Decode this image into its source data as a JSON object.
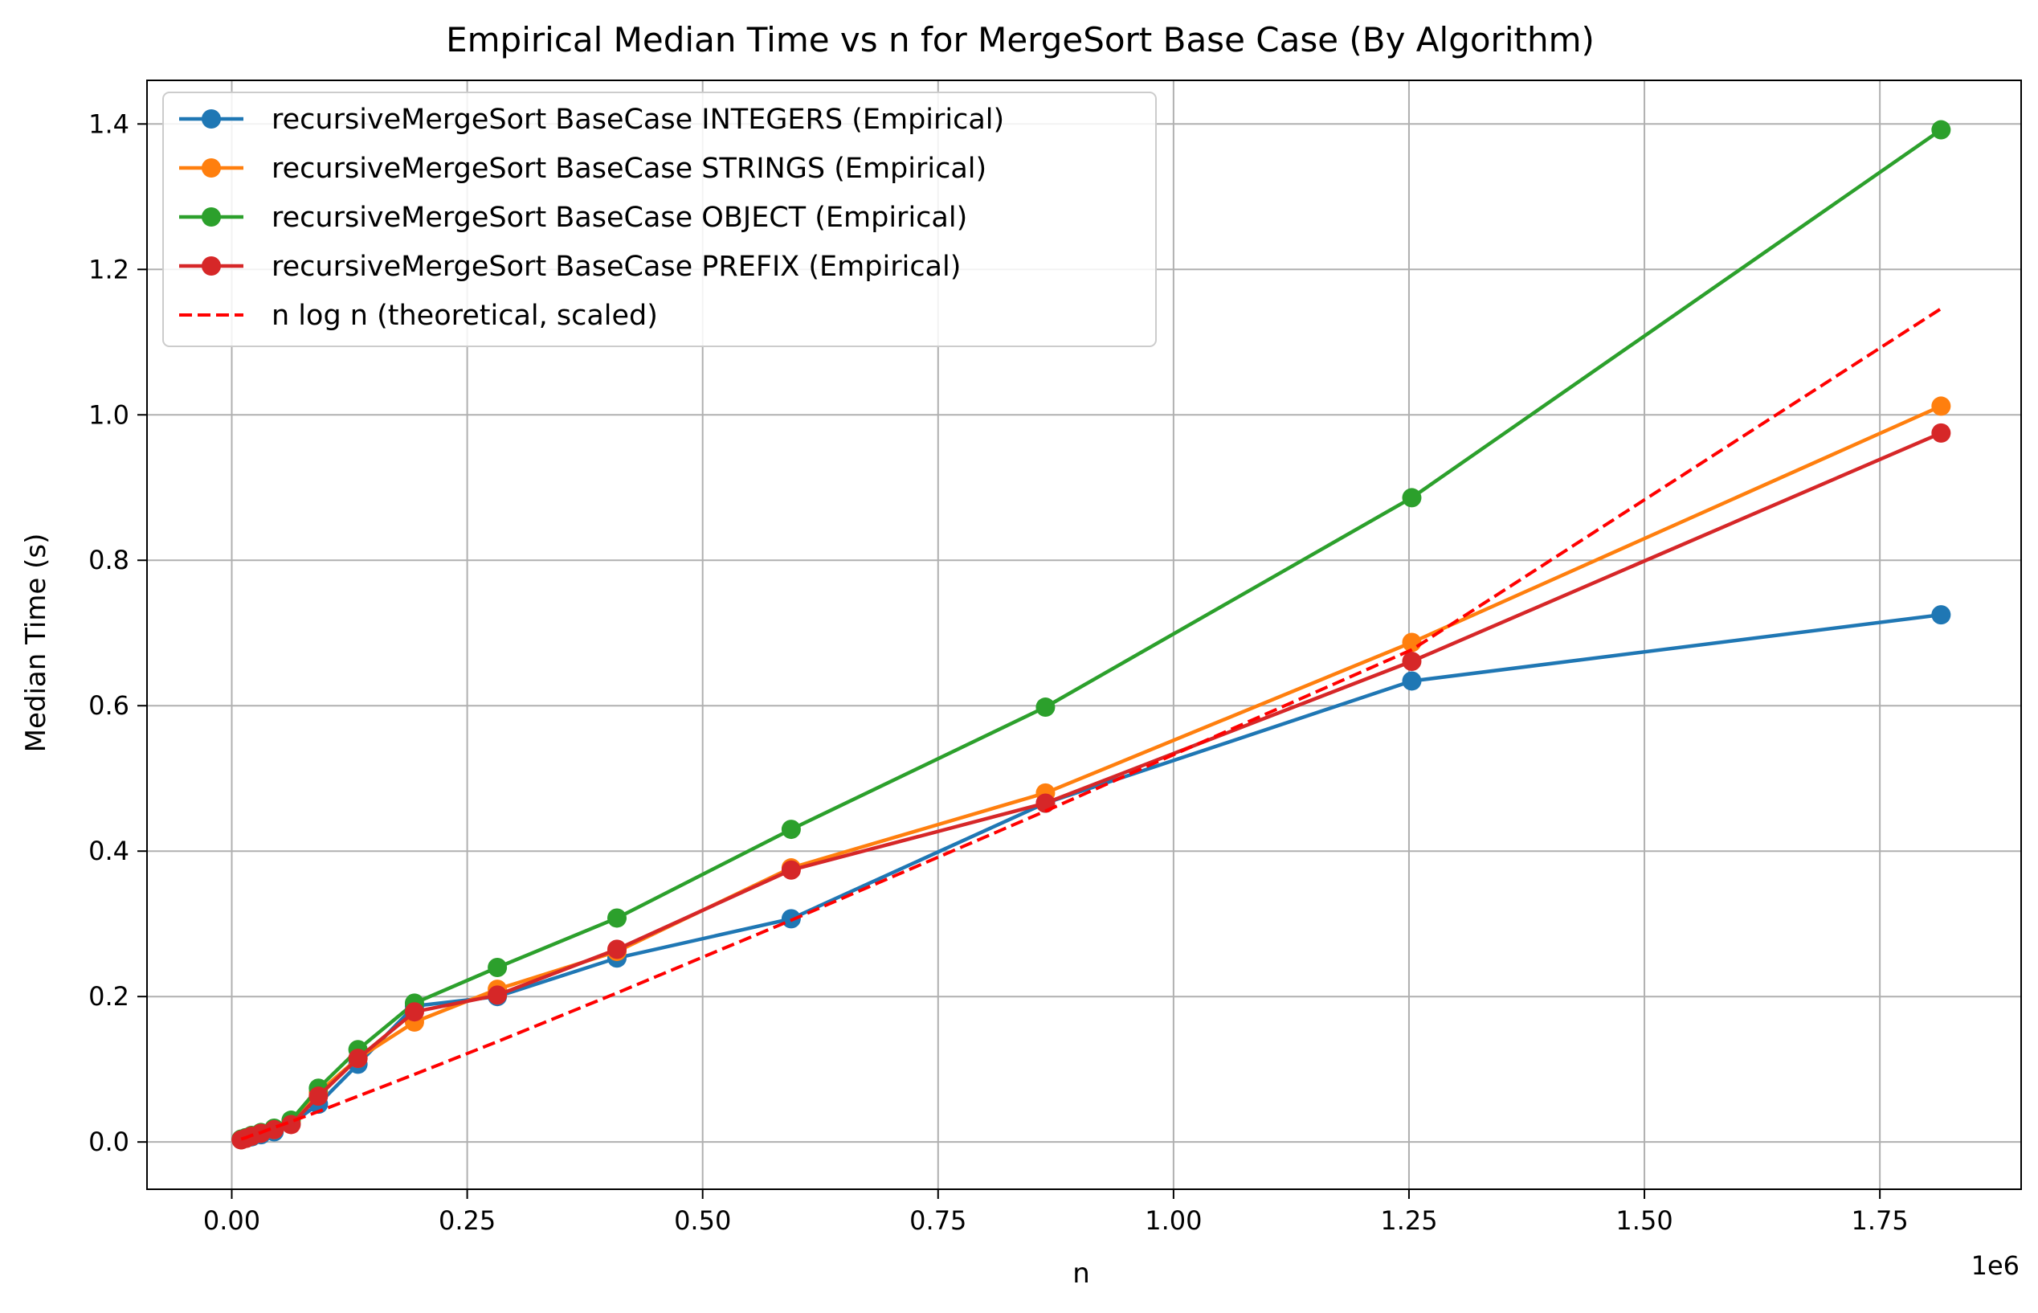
{
  "chart_data": {
    "type": "line",
    "title": "Empirical Median Time vs n for MergeSort Base Case (By Algorithm)",
    "xlabel": "n",
    "ylabel": "Median Time (s)",
    "x_offset_label": "1e6",
    "xlim": [
      -0.09,
      1.9
    ],
    "ylim": [
      -0.065,
      1.46
    ],
    "grid": true,
    "legend_position": "top-left",
    "x_ticks": [
      0.0,
      0.25,
      0.5,
      0.75,
      1.0,
      1.25,
      1.5,
      1.75
    ],
    "x_tick_labels": [
      "0.00",
      "0.25",
      "0.50",
      "0.75",
      "1.00",
      "1.25",
      "1.50",
      "1.75"
    ],
    "y_ticks": [
      0.0,
      0.2,
      0.4,
      0.6,
      0.8,
      1.0,
      1.2,
      1.4
    ],
    "y_tick_labels": [
      "0.0",
      "0.2",
      "0.4",
      "0.6",
      "0.8",
      "1.0",
      "1.2",
      "1.4"
    ],
    "x": [
      0.01,
      0.015,
      0.021,
      0.031,
      0.045,
      0.063,
      0.092,
      0.134,
      0.194,
      0.282,
      0.409,
      0.594,
      0.864,
      1.253,
      1.815
    ],
    "series": [
      {
        "name": "recursiveMergeSort BaseCase INTEGERS (Empirical)",
        "color": "#1f77b4",
        "style": "solid-marker",
        "values": [
          0.003,
          0.005,
          0.007,
          0.01,
          0.014,
          0.025,
          0.052,
          0.107,
          0.187,
          0.2,
          0.253,
          0.307,
          0.466,
          0.634,
          0.725
        ]
      },
      {
        "name": "recursiveMergeSort BaseCase STRINGS (Empirical)",
        "color": "#ff7f0e",
        "style": "solid-marker",
        "values": [
          0.003,
          0.005,
          0.008,
          0.012,
          0.017,
          0.027,
          0.068,
          0.115,
          0.165,
          0.21,
          0.262,
          0.377,
          0.48,
          0.687,
          1.012
        ]
      },
      {
        "name": "recursiveMergeSort BaseCase OBJECT (Empirical)",
        "color": "#2ca02c",
        "style": "solid-marker",
        "values": [
          0.004,
          0.006,
          0.009,
          0.013,
          0.019,
          0.03,
          0.074,
          0.127,
          0.191,
          0.24,
          0.308,
          0.43,
          0.598,
          0.886,
          1.392
        ]
      },
      {
        "name": "recursiveMergeSort BaseCase PREFIX (Empirical)",
        "color": "#d62728",
        "style": "solid-marker",
        "values": [
          0.003,
          0.005,
          0.008,
          0.012,
          0.017,
          0.024,
          0.063,
          0.115,
          0.179,
          0.202,
          0.265,
          0.374,
          0.466,
          0.661,
          0.975
        ]
      },
      {
        "name": "n log n (theoretical, scaled)",
        "color": "#ff0000",
        "style": "dashed",
        "values": [
          0.004,
          0.006,
          0.009,
          0.013,
          0.02,
          0.028,
          0.042,
          0.063,
          0.093,
          0.138,
          0.205,
          0.305,
          0.455,
          0.677,
          1.146
        ]
      }
    ]
  }
}
